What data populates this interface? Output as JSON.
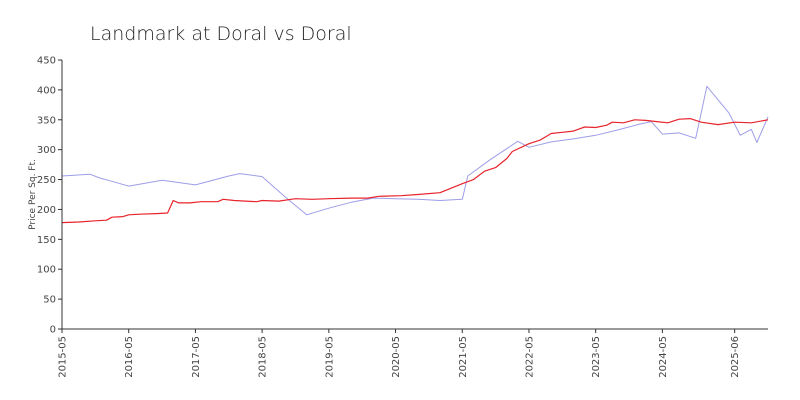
{
  "chart_data": {
    "type": "line",
    "title": "Landmark at Doral vs Doral",
    "xlabel": "",
    "ylabel": "Price Per Sq. Ft.",
    "ylim": [
      0,
      450
    ],
    "yticks": [
      0,
      50,
      100,
      150,
      200,
      250,
      300,
      350,
      400,
      450
    ],
    "xlim": [
      "2015-05",
      "2025-12"
    ],
    "xticks": [
      "2015-05",
      "2016-05",
      "2017-05",
      "2018-05",
      "2019-05",
      "2020-05",
      "2021-05",
      "2022-05",
      "2023-05",
      "2024-05",
      "2025-06"
    ],
    "grid": false,
    "legend": "none",
    "series": [
      {
        "color": "#e8232b",
        "points": [
          [
            "2015-05",
            178
          ],
          [
            "2015-08",
            179
          ],
          [
            "2015-11",
            181
          ],
          [
            "2016-01",
            182
          ],
          [
            "2016-02",
            187
          ],
          [
            "2016-04",
            188
          ],
          [
            "2016-05",
            191
          ],
          [
            "2016-07",
            192
          ],
          [
            "2016-10",
            193
          ],
          [
            "2016-12",
            194
          ],
          [
            "2017-01",
            215
          ],
          [
            "2017-02",
            211
          ],
          [
            "2017-04",
            211
          ],
          [
            "2017-06",
            213
          ],
          [
            "2017-09",
            213
          ],
          [
            "2017-10",
            217
          ],
          [
            "2017-12",
            215
          ],
          [
            "2018-02",
            214
          ],
          [
            "2018-04",
            213
          ],
          [
            "2018-05",
            215
          ],
          [
            "2018-08",
            214
          ],
          [
            "2018-11",
            218
          ],
          [
            "2019-02",
            217
          ],
          [
            "2019-05",
            218
          ],
          [
            "2019-09",
            219
          ],
          [
            "2019-12",
            219
          ],
          [
            "2020-02",
            222
          ],
          [
            "2020-06",
            223
          ],
          [
            "2020-09",
            225
          ],
          [
            "2021-01",
            228
          ],
          [
            "2021-05",
            243
          ],
          [
            "2021-07",
            250
          ],
          [
            "2021-09",
            264
          ],
          [
            "2021-11",
            270
          ],
          [
            "2022-01",
            285
          ],
          [
            "2022-02",
            297
          ],
          [
            "2022-05",
            310
          ],
          [
            "2022-07",
            316
          ],
          [
            "2022-09",
            327
          ],
          [
            "2022-11",
            329
          ],
          [
            "2023-01",
            331
          ],
          [
            "2023-03",
            338
          ],
          [
            "2023-05",
            337
          ],
          [
            "2023-07",
            341
          ],
          [
            "2023-08",
            346
          ],
          [
            "2023-10",
            345
          ],
          [
            "2023-12",
            350
          ],
          [
            "2024-02",
            349
          ],
          [
            "2024-04",
            347
          ],
          [
            "2024-06",
            345
          ],
          [
            "2024-08",
            351
          ],
          [
            "2024-10",
            352
          ],
          [
            "2024-12",
            346
          ],
          [
            "2025-03",
            342
          ],
          [
            "2025-06",
            346
          ],
          [
            "2025-09",
            345
          ],
          [
            "2025-12",
            350
          ]
        ]
      },
      {
        "color": "#9d9de8",
        "points": [
          [
            "2015-05",
            256
          ],
          [
            "2015-10",
            259
          ],
          [
            "2015-12",
            252
          ],
          [
            "2016-02",
            247
          ],
          [
            "2016-05",
            239
          ],
          [
            "2016-11",
            249
          ],
          [
            "2017-05",
            241
          ],
          [
            "2017-11",
            256
          ],
          [
            "2018-01",
            260
          ],
          [
            "2018-05",
            255
          ],
          [
            "2018-09",
            222
          ],
          [
            "2019-01",
            191
          ],
          [
            "2019-05",
            202
          ],
          [
            "2019-09",
            212
          ],
          [
            "2020-01",
            219
          ],
          [
            "2020-05",
            218
          ],
          [
            "2020-09",
            217
          ],
          [
            "2021-01",
            215
          ],
          [
            "2021-05",
            217
          ],
          [
            "2021-06",
            256
          ],
          [
            "2021-10",
            283
          ],
          [
            "2022-03",
            314
          ],
          [
            "2022-05",
            304
          ],
          [
            "2022-09",
            313
          ],
          [
            "2023-01",
            318
          ],
          [
            "2023-05",
            324
          ],
          [
            "2023-09",
            333
          ],
          [
            "2024-01",
            343
          ],
          [
            "2024-03",
            347
          ],
          [
            "2024-05",
            326
          ],
          [
            "2024-08",
            328
          ],
          [
            "2024-11",
            319
          ],
          [
            "2025-01",
            406
          ],
          [
            "2025-05",
            361
          ],
          [
            "2025-07",
            324
          ],
          [
            "2025-09",
            334
          ],
          [
            "2025-10",
            312
          ],
          [
            "2025-12",
            355
          ]
        ]
      }
    ]
  }
}
